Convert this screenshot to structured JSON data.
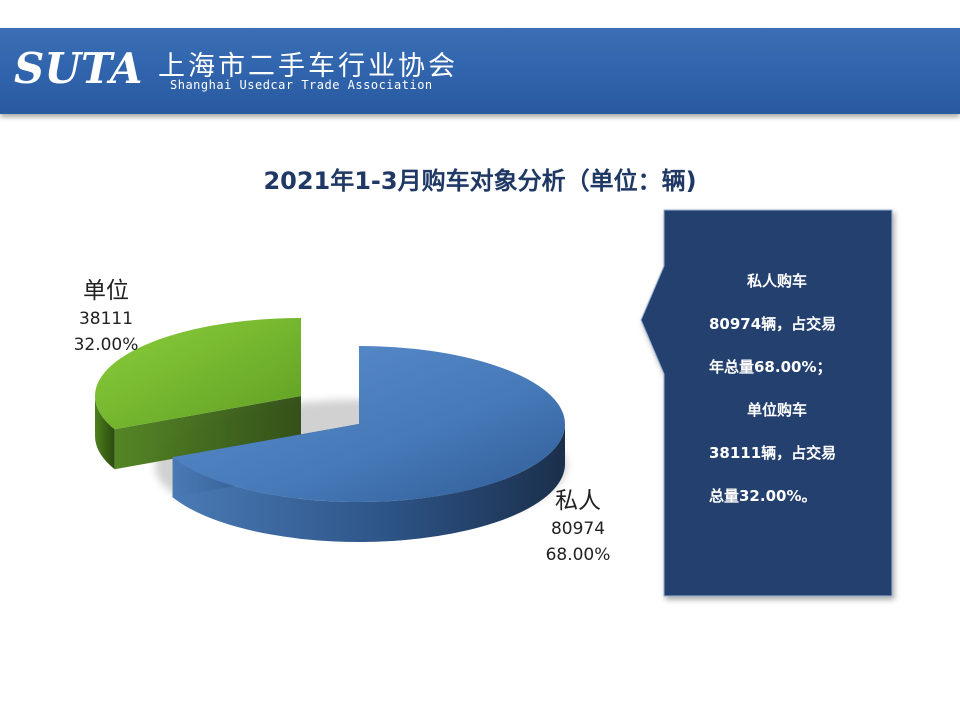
{
  "header": {
    "logo_text": "SUTA",
    "assoc_name_cn": "上海市二手车行业协会",
    "assoc_name_en": "Shanghai Usedcar Trade Association"
  },
  "chart_data": {
    "type": "pie",
    "title": "2021年1-3月购车对象分析（单位：辆)",
    "slices": [
      {
        "label": "私人",
        "value": 80974,
        "percent": "68.00%",
        "value_text": "80974",
        "color": "#3f70ad"
      },
      {
        "label": "单位",
        "value": 38111,
        "percent": "32.00%",
        "value_text": "38111",
        "color": "#6fad2c"
      }
    ],
    "style": "3d-exploded"
  },
  "callout": {
    "lines": [
      "私人购车",
      "80974辆，占交易",
      "年总量68.00%；",
      "单位购车",
      "38111辆，占交易",
      "总量32.00%。"
    ],
    "background": "#24406e"
  }
}
